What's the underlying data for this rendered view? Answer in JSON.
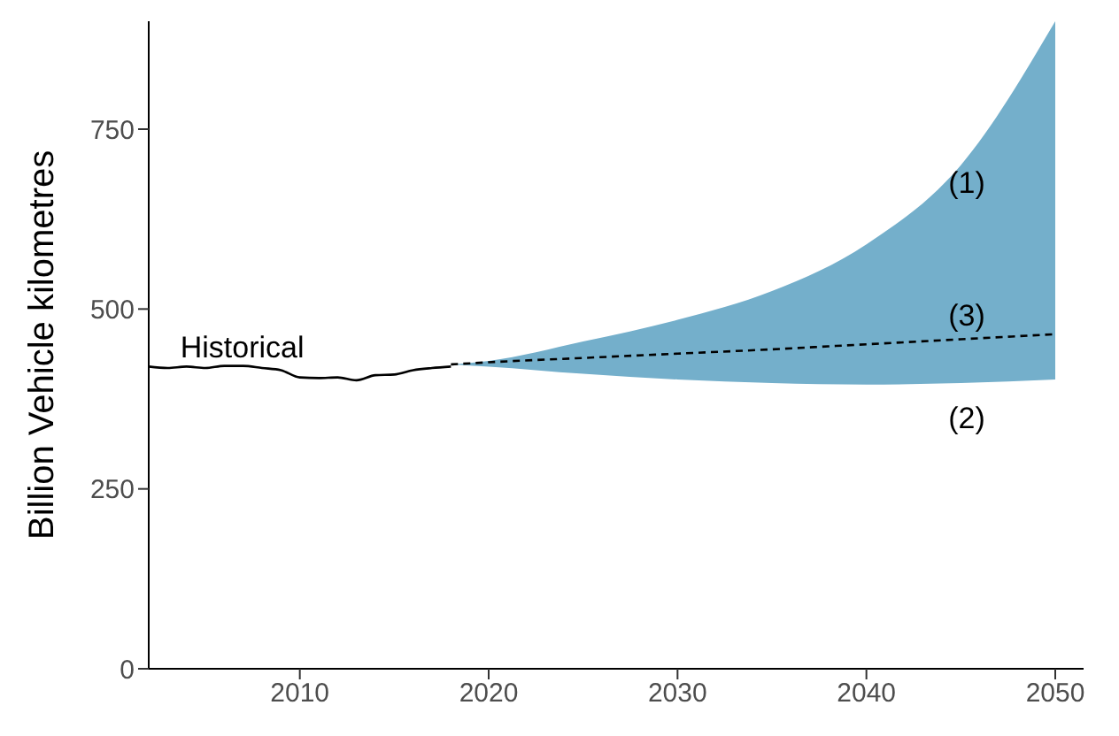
{
  "chart_data": {
    "type": "line",
    "ylabel": "Billion Vehicle kilometres",
    "xlim": [
      2002,
      2051.5
    ],
    "xticks": [
      2010,
      2020,
      2030,
      2040,
      2050
    ],
    "ylim": [
      0,
      900
    ],
    "yticks": [
      0,
      250,
      500,
      750
    ],
    "grid": false,
    "legend": false,
    "marker": "none",
    "series": [
      {
        "color": "#000000",
        "line_style": "solid",
        "x": [
          2002,
          2003,
          2004,
          2005,
          2006,
          2007,
          2008,
          2009,
          2010,
          2011,
          2012,
          2013,
          2014,
          2015,
          2016,
          2017,
          2018
        ],
        "values": [
          420,
          418,
          420,
          418,
          421,
          421,
          418,
          415,
          405,
          404,
          405,
          401,
          408,
          409,
          415,
          418,
          420
        ]
      },
      {
        "type": "line",
        "color": "#000000",
        "line_style": "dashed",
        "x": [
          2018,
          2020,
          2025,
          2030,
          2035,
          2040,
          2045,
          2050
        ],
        "values": [
          423,
          426,
          432,
          438,
          444,
          451,
          458,
          465
        ],
        "lower": [
          423,
          420,
          410,
          402,
          397,
          395,
          397,
          402
        ],
        "upper": [
          423,
          428,
          455,
          485,
          525,
          590,
          700,
          900
        ]
      }
    ],
    "annotations": [
      "Historical",
      "(1)",
      "(3)",
      "(2)"
    ]
  }
}
